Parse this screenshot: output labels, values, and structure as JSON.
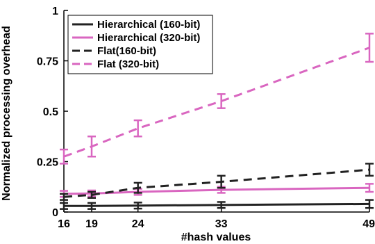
{
  "chart_data": {
    "type": "line",
    "title": "",
    "xlabel": "#hash values",
    "ylabel": "Normalized processing overhead",
    "x": [
      16,
      19,
      24,
      33,
      49
    ],
    "xlim": [
      16,
      49
    ],
    "ylim": [
      0,
      1
    ],
    "x_ticks": [
      16,
      19,
      24,
      33,
      49
    ],
    "x_tick_labels": [
      "16",
      "19",
      "24",
      "33",
      "49"
    ],
    "y_ticks": [
      0,
      0.25,
      0.5,
      0.75,
      1
    ],
    "y_tick_labels": [
      "0",
      "0.25",
      "0.5",
      "0.75",
      "1"
    ],
    "grid": false,
    "legend_position": "top-left",
    "series": [
      {
        "name": "Hierarchical (160-bit)",
        "color": "#222222",
        "line_style": "solid",
        "values": [
          0.03,
          0.03,
          0.032,
          0.035,
          0.04
        ],
        "error": [
          0.015,
          0.015,
          0.015,
          0.015,
          0.02
        ]
      },
      {
        "name": "Hierarchical (320-bit)",
        "color": "#d966c0",
        "line_style": "solid",
        "values": [
          0.09,
          0.092,
          0.1,
          0.11,
          0.12
        ],
        "error": [
          0.015,
          0.015,
          0.015,
          0.015,
          0.02
        ]
      },
      {
        "name": "Flat(160-bit)",
        "color": "#222222",
        "line_style": "dashed",
        "values": [
          0.075,
          0.085,
          0.12,
          0.15,
          0.21
        ],
        "error": [
          0.015,
          0.015,
          0.025,
          0.03,
          0.03
        ]
      },
      {
        "name": "Flat (320-bit)",
        "color": "#d966c0",
        "line_style": "dashed",
        "values": [
          0.275,
          0.325,
          0.415,
          0.55,
          0.815
        ],
        "error": [
          0.035,
          0.05,
          0.04,
          0.035,
          0.07
        ]
      }
    ]
  }
}
